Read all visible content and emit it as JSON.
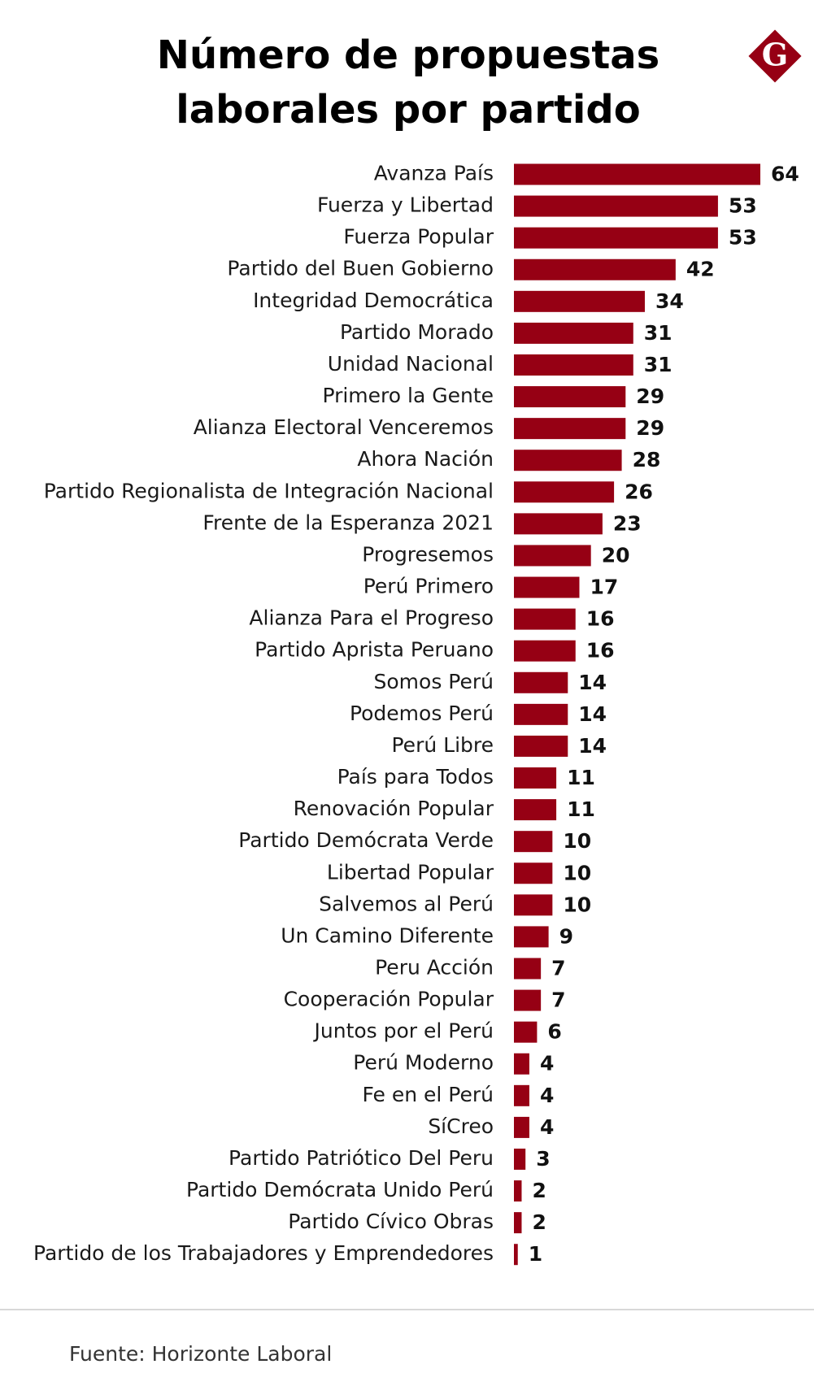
{
  "chart_data": {
    "type": "bar",
    "orientation": "horizontal",
    "title": [
      "Número de propuestas",
      "laborales por partido"
    ],
    "logo": "G",
    "categories": [
      "Avanza País",
      "Fuerza y Libertad",
      "Fuerza Popular",
      "Partido del Buen Gobierno",
      "Integridad Democrática",
      "Partido Morado",
      "Unidad Nacional",
      "Primero la Gente",
      "Alianza Electoral Venceremos",
      "Ahora Nación",
      "Partido Regionalista de Integración Nacional",
      "Frente de la Esperanza 2021",
      "Progresemos",
      "Perú Primero",
      "Alianza Para el Progreso",
      "Partido Aprista Peruano",
      "Somos Perú",
      "Podemos Perú",
      "Perú Libre",
      "País para Todos",
      "Renovación Popular",
      "Partido Demócrata Verde",
      "Libertad Popular",
      "Salvemos al Perú",
      "Un Camino Diferente",
      "Peru Acción",
      "Cooperación Popular",
      "Juntos por el Perú",
      "Perú Moderno",
      "Fe en el Perú",
      "SíCreo",
      "Partido Patriótico Del Peru",
      "Partido Demócrata Unido Perú",
      "Partido Cívico Obras",
      "Partido de los Trabajadores y Emprendedores"
    ],
    "values": [
      64,
      53,
      53,
      42,
      34,
      31,
      31,
      29,
      29,
      28,
      26,
      23,
      20,
      17,
      16,
      16,
      14,
      14,
      14,
      11,
      11,
      10,
      10,
      10,
      9,
      7,
      7,
      6,
      4,
      4,
      4,
      3,
      2,
      2,
      1
    ],
    "color": "#960014",
    "source": "Fuente: Horizonte Laboral"
  }
}
